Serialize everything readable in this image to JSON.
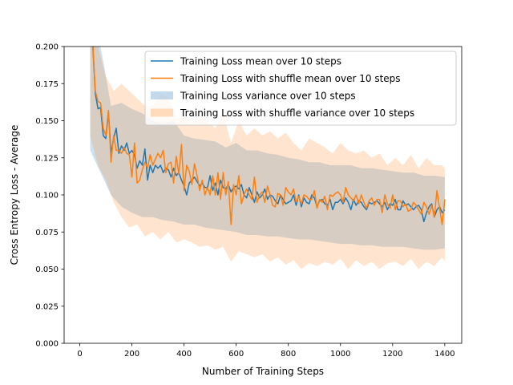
{
  "chart_data": {
    "type": "line",
    "title": "",
    "xlabel": "Number of Training Steps",
    "ylabel": "Cross Entropy Loss - Average",
    "xlim": [
      -60,
      1465
    ],
    "ylim": [
      0.0,
      0.2
    ],
    "xticks": [
      0,
      200,
      400,
      600,
      800,
      1000,
      1200,
      1400
    ],
    "yticks": [
      0.0,
      0.025,
      0.05,
      0.075,
      0.1,
      0.125,
      0.15,
      0.175,
      0.2
    ],
    "xtick_labels": [
      "0",
      "200",
      "400",
      "600",
      "800",
      "1000",
      "1200",
      "1400"
    ],
    "ytick_labels": [
      "0.000",
      "0.025",
      "0.050",
      "0.075",
      "0.100",
      "0.125",
      "0.150",
      "0.175",
      "0.200"
    ],
    "grid": false,
    "legend_position": "top-right",
    "series": [
      {
        "name": "Training Loss mean over 10 steps",
        "kind": "line",
        "color": "#1f77b4",
        "x": [
          40,
          50,
          60,
          70,
          80,
          90,
          100,
          110,
          120,
          130,
          140,
          150,
          160,
          170,
          180,
          190,
          200,
          210,
          220,
          230,
          240,
          250,
          260,
          270,
          280,
          290,
          300,
          310,
          320,
          330,
          340,
          350,
          360,
          370,
          380,
          390,
          400,
          410,
          420,
          430,
          440,
          450,
          460,
          470,
          480,
          490,
          500,
          510,
          520,
          530,
          540,
          550,
          560,
          570,
          580,
          590,
          600,
          610,
          620,
          630,
          640,
          650,
          660,
          670,
          680,
          690,
          700,
          710,
          720,
          730,
          740,
          750,
          760,
          770,
          780,
          790,
          800,
          810,
          820,
          830,
          840,
          850,
          860,
          870,
          880,
          890,
          900,
          910,
          920,
          930,
          940,
          950,
          960,
          970,
          980,
          990,
          1000,
          1010,
          1020,
          1030,
          1040,
          1050,
          1060,
          1070,
          1080,
          1090,
          1100,
          1110,
          1120,
          1130,
          1140,
          1150,
          1160,
          1170,
          1180,
          1190,
          1200,
          1210,
          1220,
          1230,
          1240,
          1250,
          1260,
          1270,
          1280,
          1290,
          1300,
          1310,
          1320,
          1330,
          1340,
          1350,
          1360,
          1370,
          1380,
          1390,
          1400
        ],
        "values": [
          0.205,
          0.2,
          0.168,
          0.158,
          0.159,
          0.14,
          0.138,
          0.156,
          0.128,
          0.138,
          0.145,
          0.128,
          0.133,
          0.13,
          0.135,
          0.128,
          0.13,
          0.127,
          0.118,
          0.123,
          0.12,
          0.131,
          0.11,
          0.12,
          0.115,
          0.12,
          0.118,
          0.12,
          0.115,
          0.118,
          0.117,
          0.112,
          0.118,
          0.113,
          0.115,
          0.11,
          0.106,
          0.1,
          0.108,
          0.11,
          0.112,
          0.109,
          0.106,
          0.108,
          0.105,
          0.105,
          0.113,
          0.103,
          0.108,
          0.1,
          0.11,
          0.105,
          0.104,
          0.107,
          0.102,
          0.105,
          0.106,
          0.104,
          0.107,
          0.1,
          0.098,
          0.105,
          0.1,
          0.095,
          0.102,
          0.098,
          0.1,
          0.104,
          0.097,
          0.1,
          0.099,
          0.096,
          0.094,
          0.1,
          0.097,
          0.094,
          0.095,
          0.096,
          0.1,
          0.093,
          0.1,
          0.092,
          0.098,
          0.095,
          0.094,
          0.1,
          0.098,
          0.092,
          0.096,
          0.097,
          0.094,
          0.093,
          0.097,
          0.09,
          0.095,
          0.095,
          0.097,
          0.094,
          0.098,
          0.095,
          0.09,
          0.097,
          0.093,
          0.096,
          0.095,
          0.092,
          0.09,
          0.095,
          0.094,
          0.095,
          0.096,
          0.094,
          0.092,
          0.095,
          0.09,
          0.094,
          0.093,
          0.097,
          0.09,
          0.09,
          0.096,
          0.093,
          0.094,
          0.092,
          0.09,
          0.092,
          0.093,
          0.09,
          0.082,
          0.088,
          0.092,
          0.094,
          0.085,
          0.09,
          0.092,
          0.088,
          0.09
        ]
      },
      {
        "name": "Training Loss with shuffle mean over 10 steps",
        "kind": "line",
        "color": "#ff7f0e",
        "x": [
          40,
          50,
          60,
          70,
          80,
          90,
          100,
          110,
          120,
          130,
          140,
          150,
          160,
          170,
          180,
          190,
          200,
          210,
          220,
          230,
          240,
          250,
          260,
          270,
          280,
          290,
          300,
          310,
          320,
          330,
          340,
          350,
          360,
          370,
          380,
          390,
          400,
          410,
          420,
          430,
          440,
          450,
          460,
          470,
          480,
          490,
          500,
          510,
          520,
          530,
          540,
          550,
          560,
          570,
          580,
          590,
          600,
          610,
          620,
          630,
          640,
          650,
          660,
          670,
          680,
          690,
          700,
          710,
          720,
          730,
          740,
          750,
          760,
          770,
          780,
          790,
          800,
          810,
          820,
          830,
          840,
          850,
          860,
          870,
          880,
          890,
          900,
          910,
          920,
          930,
          940,
          950,
          960,
          970,
          980,
          990,
          1000,
          1010,
          1020,
          1030,
          1040,
          1050,
          1060,
          1070,
          1080,
          1090,
          1100,
          1110,
          1120,
          1130,
          1140,
          1150,
          1160,
          1170,
          1180,
          1190,
          1200,
          1210,
          1220,
          1230,
          1240,
          1250,
          1260,
          1270,
          1280,
          1290,
          1300,
          1310,
          1320,
          1330,
          1340,
          1350,
          1360,
          1370,
          1380,
          1390,
          1400
        ],
        "values": [
          0.205,
          0.201,
          0.17,
          0.163,
          0.162,
          0.145,
          0.14,
          0.157,
          0.122,
          0.14,
          0.13,
          0.13,
          0.128,
          0.132,
          0.128,
          0.127,
          0.112,
          0.135,
          0.108,
          0.11,
          0.117,
          0.122,
          0.118,
          0.127,
          0.12,
          0.124,
          0.128,
          0.125,
          0.13,
          0.115,
          0.121,
          0.122,
          0.108,
          0.126,
          0.114,
          0.134,
          0.103,
          0.12,
          0.116,
          0.107,
          0.121,
          0.113,
          0.103,
          0.11,
          0.1,
          0.105,
          0.1,
          0.113,
          0.1,
          0.115,
          0.097,
          0.115,
          0.1,
          0.109,
          0.08,
          0.107,
          0.1,
          0.113,
          0.094,
          0.1,
          0.104,
          0.1,
          0.097,
          0.112,
          0.095,
          0.1,
          0.102,
          0.095,
          0.106,
          0.1,
          0.093,
          0.092,
          0.101,
          0.1,
          0.093,
          0.105,
          0.102,
          0.1,
          0.104,
          0.095,
          0.099,
          0.094,
          0.1,
          0.099,
          0.097,
          0.097,
          0.103,
          0.091,
          0.097,
          0.095,
          0.099,
          0.09,
          0.1,
          0.099,
          0.101,
          0.102,
          0.1,
          0.095,
          0.105,
          0.1,
          0.098,
          0.096,
          0.1,
          0.094,
          0.1,
          0.095,
          0.091,
          0.096,
          0.098,
          0.093,
          0.097,
          0.097,
          0.088,
          0.1,
          0.094,
          0.091,
          0.1,
          0.09,
          0.096,
          0.096,
          0.092,
          0.094,
          0.089,
          0.09,
          0.095,
          0.093,
          0.09,
          0.087,
          0.095,
          0.092,
          0.087,
          0.093,
          0.085,
          0.103,
          0.091,
          0.08,
          0.097
        ]
      },
      {
        "name": "Training Loss variance over 10 steps",
        "kind": "band",
        "color": "#1f77b4",
        "opacity": 0.22,
        "x": [
          40,
          80,
          120,
          160,
          200,
          240,
          280,
          320,
          360,
          400,
          440,
          480,
          520,
          560,
          600,
          640,
          680,
          720,
          760,
          800,
          840,
          880,
          920,
          960,
          1000,
          1040,
          1080,
          1120,
          1160,
          1200,
          1240,
          1280,
          1320,
          1360,
          1400
        ],
        "lower": [
          0.13,
          0.115,
          0.1,
          0.092,
          0.088,
          0.085,
          0.085,
          0.083,
          0.082,
          0.08,
          0.08,
          0.078,
          0.077,
          0.076,
          0.075,
          0.073,
          0.073,
          0.072,
          0.072,
          0.071,
          0.07,
          0.07,
          0.069,
          0.068,
          0.067,
          0.067,
          0.066,
          0.066,
          0.065,
          0.065,
          0.065,
          0.064,
          0.063,
          0.063,
          0.064
        ],
        "upper": [
          0.205,
          0.2,
          0.16,
          0.162,
          0.158,
          0.155,
          0.15,
          0.148,
          0.15,
          0.14,
          0.138,
          0.137,
          0.136,
          0.132,
          0.135,
          0.13,
          0.13,
          0.128,
          0.127,
          0.125,
          0.124,
          0.122,
          0.122,
          0.12,
          0.12,
          0.12,
          0.118,
          0.118,
          0.117,
          0.116,
          0.115,
          0.115,
          0.113,
          0.113,
          0.112
        ]
      },
      {
        "name": "Training Loss with shuffle variance over 10 steps",
        "kind": "band",
        "color": "#ff7f0e",
        "opacity": 0.2,
        "x": [
          40,
          70,
          100,
          130,
          160,
          190,
          220,
          250,
          280,
          310,
          340,
          370,
          400,
          430,
          460,
          490,
          520,
          550,
          580,
          610,
          640,
          670,
          700,
          730,
          760,
          790,
          820,
          850,
          880,
          910,
          940,
          970,
          1000,
          1030,
          1060,
          1090,
          1120,
          1150,
          1180,
          1210,
          1240,
          1270,
          1300,
          1330,
          1360,
          1390,
          1400
        ],
        "lower": [
          0.14,
          0.12,
          0.11,
          0.095,
          0.085,
          0.078,
          0.08,
          0.072,
          0.075,
          0.07,
          0.075,
          0.068,
          0.07,
          0.068,
          0.065,
          0.066,
          0.063,
          0.065,
          0.055,
          0.062,
          0.06,
          0.058,
          0.06,
          0.055,
          0.058,
          0.053,
          0.056,
          0.05,
          0.054,
          0.052,
          0.055,
          0.053,
          0.057,
          0.05,
          0.056,
          0.052,
          0.055,
          0.05,
          0.054,
          0.055,
          0.052,
          0.057,
          0.05,
          0.055,
          0.052,
          0.058,
          0.055
        ],
        "upper": [
          0.205,
          0.2,
          0.18,
          0.17,
          0.175,
          0.17,
          0.165,
          0.16,
          0.16,
          0.168,
          0.165,
          0.15,
          0.155,
          0.148,
          0.152,
          0.15,
          0.145,
          0.155,
          0.135,
          0.15,
          0.14,
          0.145,
          0.14,
          0.143,
          0.138,
          0.142,
          0.135,
          0.13,
          0.138,
          0.135,
          0.132,
          0.128,
          0.135,
          0.13,
          0.128,
          0.13,
          0.125,
          0.128,
          0.12,
          0.125,
          0.12,
          0.127,
          0.118,
          0.125,
          0.12,
          0.12,
          0.118
        ]
      }
    ]
  }
}
